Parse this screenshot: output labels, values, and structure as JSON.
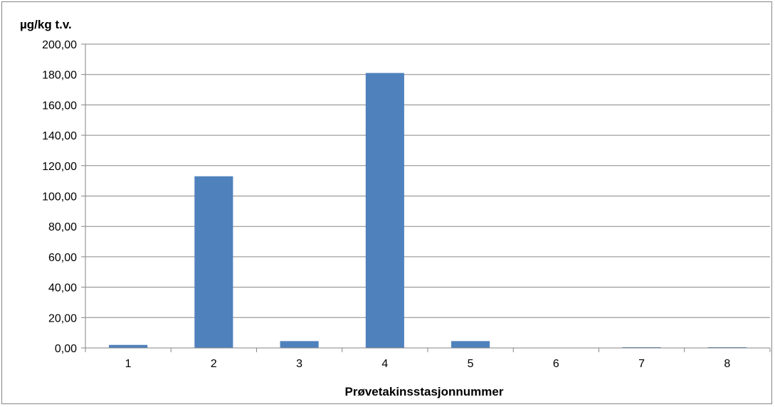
{
  "chart_data": {
    "type": "bar",
    "ylabel": "µg/kg t.v.",
    "xlabel": "Prøvetakinsstasjonnummer",
    "categories": [
      "1",
      "2",
      "3",
      "4",
      "5",
      "6",
      "7",
      "8"
    ],
    "series": [
      {
        "values": [
          2.0,
          113.0,
          4.5,
          181.0,
          4.5,
          0.0,
          0.5,
          0.5
        ]
      }
    ],
    "ylim": [
      0,
      200
    ],
    "yticks": [
      "0,00",
      "20,00",
      "40,00",
      "60,00",
      "80,00",
      "100,00",
      "120,00",
      "140,00",
      "160,00",
      "180,00",
      "200,00"
    ],
    "grid": true,
    "legend": "none",
    "bar_color": "#4F81BD",
    "grid_color": "#868686"
  }
}
